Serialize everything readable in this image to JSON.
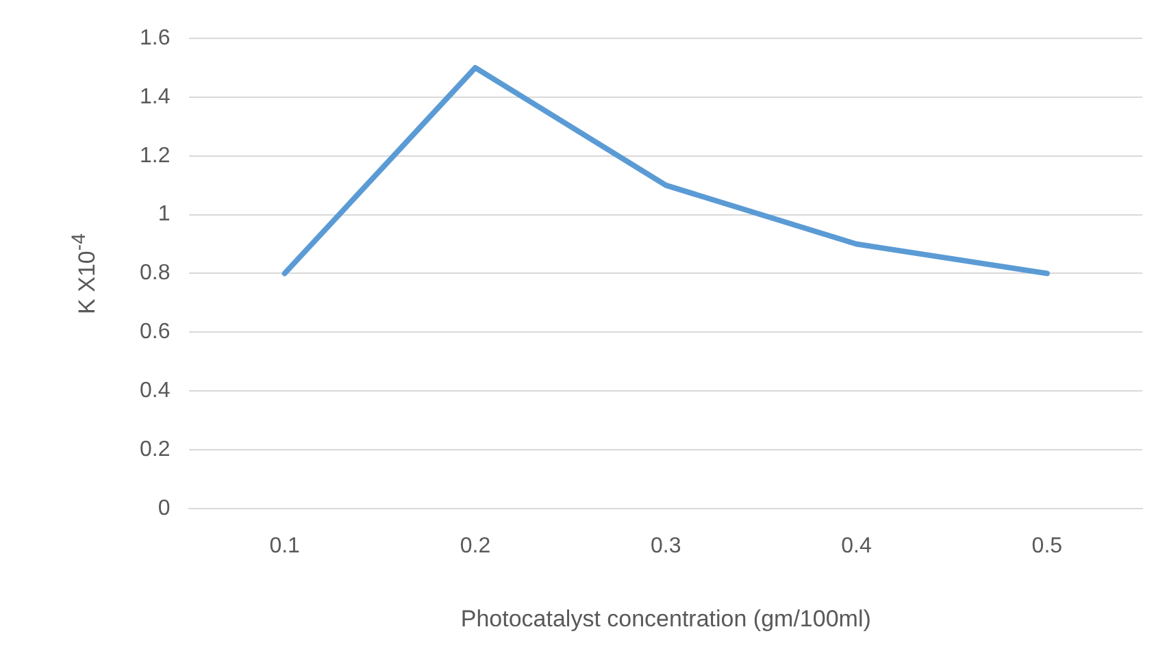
{
  "chart_data": {
    "type": "line",
    "xlabel": "Photocatalyst concentration (gm/100ml)",
    "ylabel": "K X10$^{-4}$",
    "categories": [
      "0.1",
      "0.2",
      "0.3",
      "0.4",
      "0.5"
    ],
    "series": [
      {
        "color": "#5b9bd5",
        "values": [
          0.8,
          1.5,
          1.1,
          0.9,
          0.8
        ]
      }
    ],
    "ylim": [
      0,
      1.6
    ],
    "yticks": [
      0,
      0.2,
      0.4,
      0.6,
      0.8,
      1,
      1.2,
      1.4,
      1.6
    ],
    "grid": "y",
    "legend": false,
    "marker": "none",
    "line_style": "solid"
  }
}
